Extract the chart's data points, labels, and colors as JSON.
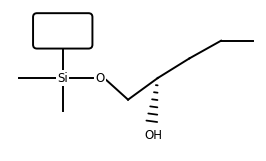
{
  "background_color": "#ffffff",
  "line_color": "#000000",
  "text_color": "#000000",
  "si_label": "Si",
  "o_label": "O",
  "oh_label": "OH",
  "fig_width": 2.66,
  "fig_height": 1.61,
  "dpi": 100,
  "line_width": 1.4,
  "font_size": 8.5,
  "wedge_lines": 7
}
